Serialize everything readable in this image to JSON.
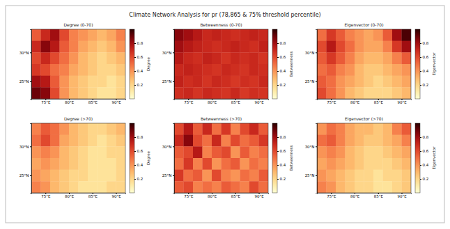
{
  "title": "Climate Network Analysis for pr (78,865 & 75% threshold percentile)",
  "chart_data": [
    {
      "type": "heatmap",
      "title": "Degree (0-70)",
      "x": [
        73,
        75,
        77,
        79,
        81,
        83,
        85,
        87,
        89,
        91
      ],
      "y": [
        33,
        31,
        29,
        27,
        25,
        23
      ],
      "values": [
        [
          0.55,
          0.7,
          0.8,
          0.6,
          0.45,
          0.4,
          0.35,
          0.3,
          0.35,
          0.45
        ],
        [
          0.7,
          0.85,
          0.75,
          0.55,
          0.45,
          0.35,
          0.3,
          0.25,
          0.3,
          0.4
        ],
        [
          0.6,
          0.7,
          0.6,
          0.5,
          0.4,
          0.3,
          0.25,
          0.2,
          0.25,
          0.3
        ],
        [
          0.65,
          0.6,
          0.5,
          0.45,
          0.35,
          0.3,
          0.25,
          0.2,
          0.2,
          0.25
        ],
        [
          0.8,
          0.75,
          0.55,
          0.4,
          0.3,
          0.25,
          0.2,
          0.2,
          0.15,
          0.2
        ],
        [
          0.9,
          0.85,
          0.6,
          0.4,
          0.3,
          0.25,
          0.2,
          0.15,
          0.15,
          0.2
        ]
      ],
      "xlim": [
        72,
        92
      ],
      "ylim": [
        22,
        34
      ],
      "xticks": [
        {
          "value": 75,
          "label": "75°E"
        },
        {
          "value": 80,
          "label": "80°E"
        },
        {
          "value": 85,
          "label": "85°E"
        },
        {
          "value": 90,
          "label": "90°E"
        }
      ],
      "yticks": [
        {
          "value": 25,
          "label": "25°N"
        },
        {
          "value": 30,
          "label": "30°N"
        }
      ],
      "colorbar": {
        "range": [
          0,
          1
        ],
        "ticks": [
          0.2,
          0.4,
          0.6,
          0.8
        ],
        "label": "Degree"
      }
    },
    {
      "type": "heatmap",
      "title": "Betweenness (0-70)",
      "x": [
        73,
        75,
        77,
        79,
        81,
        83,
        85,
        87,
        89,
        91
      ],
      "y": [
        33,
        31,
        29,
        27,
        25,
        23
      ],
      "values": [
        [
          0.85,
          0.8,
          0.75,
          0.7,
          0.72,
          0.7,
          0.68,
          0.7,
          0.72,
          0.7
        ],
        [
          0.8,
          0.75,
          0.72,
          0.7,
          0.68,
          0.7,
          0.72,
          0.7,
          0.68,
          0.72
        ],
        [
          0.75,
          0.7,
          0.68,
          0.72,
          0.7,
          0.66,
          0.7,
          0.68,
          0.7,
          0.66
        ],
        [
          0.7,
          0.72,
          0.7,
          0.68,
          0.66,
          0.7,
          0.68,
          0.66,
          0.7,
          0.68
        ],
        [
          0.72,
          0.68,
          0.7,
          0.66,
          0.7,
          0.68,
          0.65,
          0.68,
          0.66,
          0.7
        ],
        [
          0.68,
          0.7,
          0.66,
          0.7,
          0.68,
          0.66,
          0.7,
          0.65,
          0.68,
          0.66
        ]
      ],
      "xlim": [
        72,
        92
      ],
      "ylim": [
        22,
        34
      ],
      "xticks": [
        {
          "value": 75,
          "label": "75°E"
        },
        {
          "value": 80,
          "label": "80°E"
        },
        {
          "value": 85,
          "label": "85°E"
        },
        {
          "value": 90,
          "label": "90°E"
        }
      ],
      "yticks": [
        {
          "value": 25,
          "label": "25°N"
        },
        {
          "value": 30,
          "label": "30°N"
        }
      ],
      "colorbar": {
        "range": [
          0,
          1
        ],
        "ticks": [
          0.2,
          0.4,
          0.6,
          0.8
        ],
        "label": "Betweenness"
      }
    },
    {
      "type": "heatmap",
      "title": "Eigenvector (0-70)",
      "x": [
        73,
        75,
        77,
        79,
        81,
        83,
        85,
        87,
        89,
        91
      ],
      "y": [
        33,
        31,
        29,
        27,
        25,
        23
      ],
      "values": [
        [
          0.5,
          0.65,
          0.55,
          0.45,
          0.4,
          0.35,
          0.4,
          0.55,
          0.8,
          0.95
        ],
        [
          0.6,
          0.75,
          0.6,
          0.5,
          0.4,
          0.35,
          0.35,
          0.45,
          0.65,
          0.8
        ],
        [
          0.55,
          0.65,
          0.55,
          0.45,
          0.35,
          0.3,
          0.3,
          0.35,
          0.45,
          0.55
        ],
        [
          0.5,
          0.55,
          0.45,
          0.4,
          0.3,
          0.25,
          0.25,
          0.3,
          0.35,
          0.4
        ],
        [
          0.55,
          0.5,
          0.4,
          0.35,
          0.3,
          0.25,
          0.2,
          0.25,
          0.3,
          0.35
        ],
        [
          0.6,
          0.5,
          0.4,
          0.3,
          0.25,
          0.2,
          0.2,
          0.2,
          0.25,
          0.3
        ]
      ],
      "xlim": [
        72,
        92
      ],
      "ylim": [
        22,
        34
      ],
      "xticks": [
        {
          "value": 75,
          "label": "75°E"
        },
        {
          "value": 80,
          "label": "80°E"
        },
        {
          "value": 85,
          "label": "85°E"
        },
        {
          "value": 90,
          "label": "90°E"
        }
      ],
      "yticks": [
        {
          "value": 25,
          "label": "25°N"
        },
        {
          "value": 30,
          "label": "30°N"
        }
      ],
      "colorbar": {
        "range": [
          0,
          1
        ],
        "ticks": [
          0.2,
          0.4,
          0.6,
          0.8
        ],
        "label": "Eigenvector"
      }
    },
    {
      "type": "heatmap",
      "title": "Degree (>70)",
      "x": [
        73,
        75,
        77,
        79,
        81,
        83,
        85,
        87,
        89,
        91
      ],
      "y": [
        33,
        31,
        29,
        27,
        25,
        23
      ],
      "values": [
        [
          0.45,
          0.55,
          0.5,
          0.4,
          0.3,
          0.25,
          0.2,
          0.2,
          0.25,
          0.3
        ],
        [
          0.5,
          0.6,
          0.5,
          0.35,
          0.3,
          0.25,
          0.2,
          0.15,
          0.2,
          0.25
        ],
        [
          0.4,
          0.45,
          0.4,
          0.3,
          0.25,
          0.2,
          0.15,
          0.15,
          0.2,
          0.2
        ],
        [
          0.35,
          0.4,
          0.35,
          0.3,
          0.25,
          0.2,
          0.15,
          0.15,
          0.15,
          0.2
        ],
        [
          0.4,
          0.35,
          0.3,
          0.25,
          0.2,
          0.2,
          0.15,
          0.15,
          0.15,
          0.2
        ],
        [
          0.45,
          0.4,
          0.3,
          0.25,
          0.2,
          0.15,
          0.15,
          0.15,
          0.2,
          0.2
        ]
      ],
      "xlim": [
        72,
        92
      ],
      "ylim": [
        22,
        34
      ],
      "xticks": [
        {
          "value": 75,
          "label": "75°E"
        },
        {
          "value": 80,
          "label": "80°E"
        },
        {
          "value": 85,
          "label": "85°E"
        },
        {
          "value": 90,
          "label": "90°E"
        }
      ],
      "yticks": [
        {
          "value": 25,
          "label": "25°N"
        },
        {
          "value": 30,
          "label": "30°N"
        }
      ],
      "colorbar": {
        "range": [
          0,
          1
        ],
        "ticks": [
          0.2,
          0.4,
          0.6,
          0.8
        ],
        "label": "Degree"
      }
    },
    {
      "type": "heatmap",
      "title": "Betweenness (>70)",
      "x": [
        73,
        75,
        77,
        79,
        81,
        83,
        85,
        87,
        89,
        91
      ],
      "y": [
        33,
        31,
        29,
        27,
        25,
        23
      ],
      "values": [
        [
          0.6,
          0.75,
          0.55,
          0.7,
          0.5,
          0.65,
          0.45,
          0.6,
          0.7,
          0.55
        ],
        [
          0.7,
          0.85,
          0.6,
          0.5,
          0.7,
          0.45,
          0.6,
          0.5,
          0.55,
          0.65
        ],
        [
          0.55,
          0.6,
          0.75,
          0.45,
          0.55,
          0.6,
          0.4,
          0.55,
          0.45,
          0.5
        ],
        [
          0.5,
          0.65,
          0.45,
          0.6,
          0.4,
          0.5,
          0.55,
          0.4,
          0.5,
          0.45
        ],
        [
          0.65,
          0.5,
          0.55,
          0.4,
          0.6,
          0.45,
          0.4,
          0.5,
          0.45,
          0.55
        ],
        [
          0.55,
          0.6,
          0.45,
          0.5,
          0.45,
          0.55,
          0.5,
          0.45,
          0.6,
          0.5
        ]
      ],
      "xlim": [
        72,
        92
      ],
      "ylim": [
        22,
        34
      ],
      "xticks": [
        {
          "value": 75,
          "label": "75°E"
        },
        {
          "value": 80,
          "label": "80°E"
        },
        {
          "value": 85,
          "label": "85°E"
        },
        {
          "value": 90,
          "label": "90°E"
        }
      ],
      "yticks": [
        {
          "value": 25,
          "label": "25°N"
        },
        {
          "value": 30,
          "label": "30°N"
        }
      ],
      "colorbar": {
        "range": [
          0,
          1
        ],
        "ticks": [
          0.2,
          0.4,
          0.6,
          0.8
        ],
        "label": "Betweenness"
      }
    },
    {
      "type": "heatmap",
      "title": "Eigenvector (>70)",
      "x": [
        73,
        75,
        77,
        79,
        81,
        83,
        85,
        87,
        89,
        91
      ],
      "y": [
        33,
        31,
        29,
        27,
        25,
        23
      ],
      "values": [
        [
          0.4,
          0.5,
          0.45,
          0.35,
          0.3,
          0.3,
          0.25,
          0.3,
          0.45,
          0.55
        ],
        [
          0.5,
          0.55,
          0.45,
          0.35,
          0.3,
          0.25,
          0.25,
          0.3,
          0.35,
          0.45
        ],
        [
          0.4,
          0.45,
          0.4,
          0.3,
          0.25,
          0.2,
          0.2,
          0.25,
          0.3,
          0.35
        ],
        [
          0.35,
          0.4,
          0.35,
          0.3,
          0.25,
          0.2,
          0.2,
          0.2,
          0.25,
          0.3
        ],
        [
          0.4,
          0.35,
          0.3,
          0.25,
          0.2,
          0.2,
          0.15,
          0.2,
          0.2,
          0.25
        ],
        [
          0.45,
          0.4,
          0.3,
          0.25,
          0.2,
          0.2,
          0.15,
          0.15,
          0.2,
          0.25
        ]
      ],
      "xlim": [
        72,
        92
      ],
      "ylim": [
        22,
        34
      ],
      "xticks": [
        {
          "value": 75,
          "label": "75°E"
        },
        {
          "value": 80,
          "label": "80°E"
        },
        {
          "value": 85,
          "label": "85°E"
        },
        {
          "value": 90,
          "label": "90°E"
        }
      ],
      "yticks": [
        {
          "value": 25,
          "label": "25°N"
        },
        {
          "value": 30,
          "label": "30°N"
        }
      ],
      "colorbar": {
        "range": [
          0,
          1
        ],
        "ticks": [
          0.2,
          0.4,
          0.6,
          0.8
        ],
        "label": "Eigenvector"
      }
    }
  ]
}
